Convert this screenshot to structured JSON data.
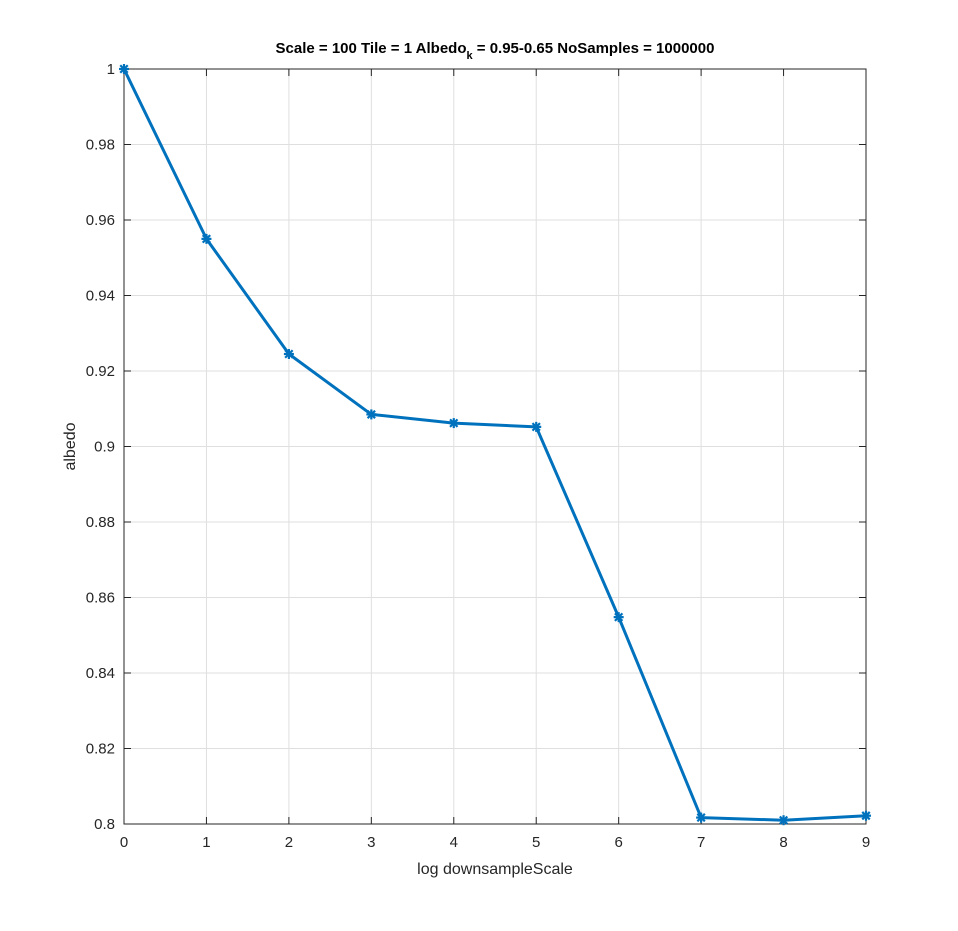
{
  "chart_data": {
    "type": "line",
    "title": {
      "main": "Scale = 100 Tile = 1 Albedo",
      "subscript": "k",
      "rest": " = 0.95-0.65 NoSamples = 1000000"
    },
    "xlabel": "log downsampleScale",
    "ylabel": "albedo",
    "xlim": [
      0,
      9
    ],
    "ylim": [
      0.8,
      1
    ],
    "xticks": [
      0,
      1,
      2,
      3,
      4,
      5,
      6,
      7,
      8,
      9
    ],
    "yticks": [
      0.8,
      0.82,
      0.84,
      0.86,
      0.88,
      0.9,
      0.92,
      0.94,
      0.96,
      0.98,
      1
    ],
    "ytick_labels": [
      "0.8",
      "0.82",
      "0.84",
      "0.86",
      "0.88",
      "0.9",
      "0.92",
      "0.94",
      "0.96",
      "0.98",
      "1"
    ],
    "grid": true,
    "series": [
      {
        "x": [
          0,
          1,
          2,
          3,
          4,
          5,
          6,
          7,
          8,
          9
        ],
        "y": [
          1.0,
          0.955,
          0.9245,
          0.9085,
          0.9062,
          0.9052,
          0.8548,
          0.8017,
          0.801,
          0.8022
        ],
        "color": "#0072BD",
        "marker": "asterisk"
      }
    ]
  }
}
